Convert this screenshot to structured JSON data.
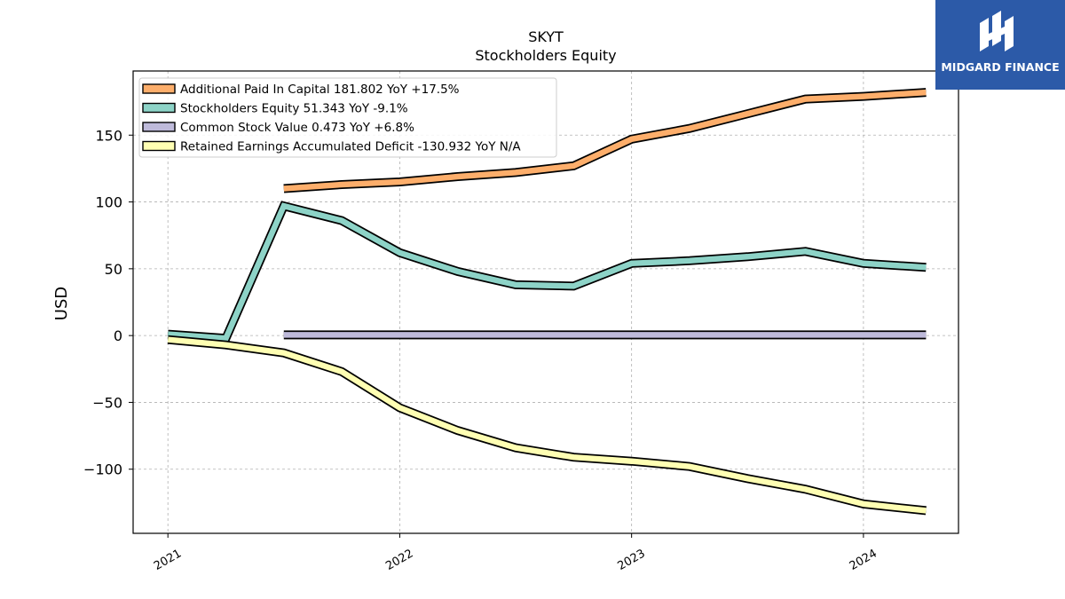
{
  "chart_data": {
    "type": "line",
    "title": "SKYT",
    "subtitle": "Stockholders  Equity",
    "ylabel": "USD",
    "xlabel": "",
    "ylim": [
      -148,
      198
    ],
    "xlim": [
      2020.85,
      2024.41
    ],
    "yticks": [
      150,
      100,
      50,
      0,
      -50,
      -100
    ],
    "ytick_labels": [
      "150",
      "100",
      "50",
      "0",
      "−50",
      "−100"
    ],
    "xticks": [
      2021,
      2022,
      2023,
      2024
    ],
    "xtick_labels": [
      "2021",
      "2022",
      "2023",
      "2024"
    ],
    "grid": true,
    "legend_position": "top-left",
    "series": [
      {
        "name": "Additional Paid In Capital  181.802 YoY +17.5%",
        "color": "#fdae6b",
        "x": [
          2021.5,
          2021.75,
          2022.0,
          2022.25,
          2022.5,
          2022.75,
          2023.0,
          2023.25,
          2023.5,
          2023.75,
          2024.0,
          2024.27
        ],
        "y": [
          110,
          113,
          115,
          119,
          122,
          127,
          147,
          155,
          166,
          177,
          179,
          182
        ]
      },
      {
        "name": "Stockholders Equity  51.343 YoY -9.1%",
        "color": "#8dd3c7",
        "x": [
          2021.0,
          2021.25,
          2021.5,
          2021.75,
          2022.0,
          2022.25,
          2022.5,
          2022.75,
          2023.0,
          2023.25,
          2023.5,
          2023.75,
          2024.0,
          2024.27
        ],
        "y": [
          1,
          -2,
          97,
          86,
          62,
          48,
          38,
          37,
          54,
          56,
          59,
          63,
          54,
          51
        ]
      },
      {
        "name": "Common Stock Value  0.473 YoY +6.8%",
        "color": "#bebada",
        "x": [
          2021.5,
          2024.27
        ],
        "y": [
          0.47,
          0.47
        ]
      },
      {
        "name": "Retained Earnings Accumulated Deficit  -130.932 YoY N/A",
        "color": "#ffffb3",
        "x": [
          2021.0,
          2021.25,
          2021.5,
          2021.75,
          2022.0,
          2022.25,
          2022.5,
          2022.75,
          2023.0,
          2023.25,
          2023.5,
          2023.75,
          2024.0,
          2024.27
        ],
        "y": [
          -3,
          -7,
          -13,
          -27,
          -54,
          -71,
          -84,
          -91,
          -94,
          -98,
          -107,
          -115,
          -126,
          -131
        ]
      }
    ]
  },
  "logo": {
    "text": "MIDGARD FINANCE",
    "color": "#2c5aa8"
  }
}
